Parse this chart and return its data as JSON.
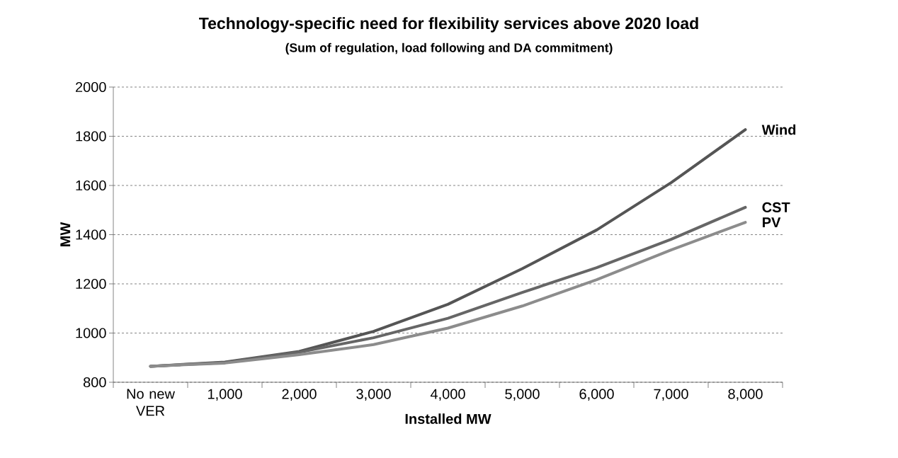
{
  "chart_data": {
    "type": "line",
    "title": "Technology-specific need for flexibility services above 2020 load",
    "subtitle": "(Sum of regulation, load following and DA commitment)",
    "xlabel": "Installed MW",
    "ylabel": "MW",
    "categories": [
      "No new VER",
      "1,000",
      "2,000",
      "3,000",
      "4,000",
      "5,000",
      "6,000",
      "7,000",
      "8,000"
    ],
    "ylim": [
      800,
      2000
    ],
    "yticks": [
      800,
      1000,
      1200,
      1400,
      1600,
      1800,
      2000
    ],
    "grid": "y",
    "line_style": "solid",
    "series": [
      {
        "name": "Wind",
        "color": "#555555",
        "values": [
          865,
          882,
          925,
          1007,
          1117,
          1262,
          1419,
          1611,
          1827
        ]
      },
      {
        "name": "CST",
        "color": "#666666",
        "values": [
          865,
          880,
          922,
          981,
          1060,
          1165,
          1266,
          1381,
          1511
        ]
      },
      {
        "name": "PV",
        "color": "#8c8c8c",
        "values": [
          865,
          878,
          912,
          953,
          1020,
          1110,
          1217,
          1338,
          1450
        ]
      }
    ]
  }
}
